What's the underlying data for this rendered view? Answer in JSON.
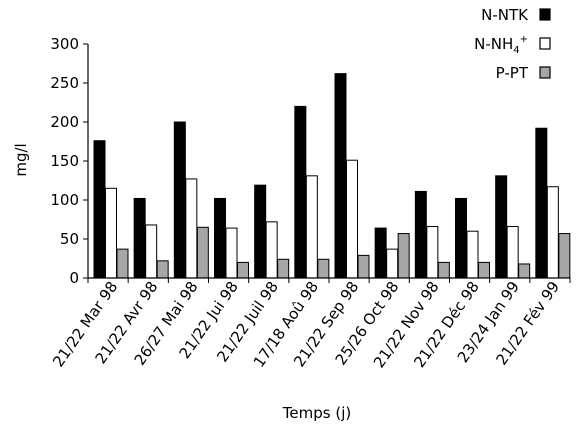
{
  "chart_data": {
    "type": "bar",
    "title": "",
    "xlabel": "Temps (j)",
    "ylabel": "mg/l",
    "ylim": [
      0,
      300
    ],
    "yticks": [
      0,
      50,
      100,
      150,
      200,
      250,
      300
    ],
    "grid": false,
    "legend_position": "top-right",
    "categories": [
      "21/22 Mar 98",
      "21/22 Avr 98",
      "26/27 Mai 98",
      "21/22 Jui 98",
      "21/22 Juil 98",
      "17/18 Aoû 98",
      "21/22 Sep 98",
      "25/26 Oct 98",
      "21/22 Nov 98",
      "21/22 Déc 98",
      "23/24 Jan 99",
      "21/22 Fév 99"
    ],
    "series": [
      {
        "name": "N-NTK",
        "legend_main": "N-NTK",
        "legend_sub": "",
        "legend_sup": "",
        "fill": "#000000",
        "stroke": "#000000",
        "values": [
          176,
          102,
          200,
          102,
          119,
          220,
          262,
          64,
          111,
          102,
          131,
          192
        ]
      },
      {
        "name": "N-NH4+",
        "legend_main": "N-NH",
        "legend_sub": "4",
        "legend_sup": "+",
        "fill": "#ffffff",
        "stroke": "#000000",
        "values": [
          115,
          68,
          127,
          64,
          72,
          131,
          151,
          37,
          66,
          60,
          66,
          117
        ]
      },
      {
        "name": "P-PT",
        "legend_main": "P-PT",
        "legend_sub": "",
        "legend_sup": "",
        "fill": "#a6a6a6",
        "stroke": "#000000",
        "values": [
          37,
          22,
          65,
          20,
          24,
          24,
          29,
          57,
          20,
          20,
          18,
          57
        ]
      }
    ]
  }
}
